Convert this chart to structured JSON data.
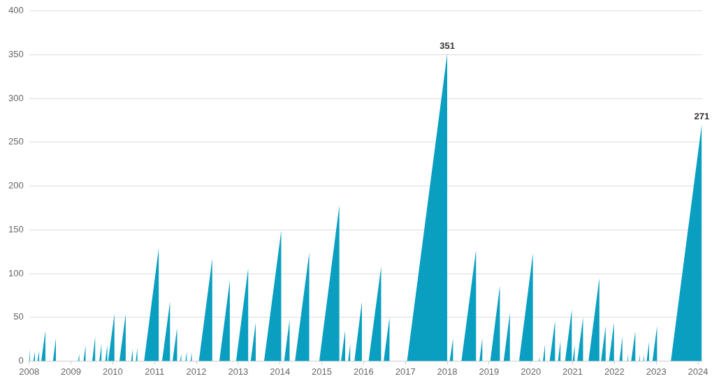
{
  "chart_data": {
    "type": "area",
    "x": [
      2008.0,
      2008.02,
      2008.02,
      2008.1,
      2008.14,
      2008.14,
      2008.2,
      2008.24,
      2008.24,
      2008.29,
      2008.39,
      2008.39,
      2008.57,
      2008.64,
      2008.64,
      2008.98,
      2008.99,
      2008.99,
      2009.17,
      2009.2,
      2009.2,
      2009.3,
      2009.35,
      2009.35,
      2009.51,
      2009.58,
      2009.58,
      2009.68,
      2009.73,
      2009.73,
      2009.82,
      2009.87,
      2009.87,
      2009.89,
      2010.04,
      2010.04,
      2010.16,
      2010.31,
      2010.31,
      2010.44,
      2010.48,
      2010.48,
      2010.55,
      2010.59,
      2010.59,
      2010.75,
      2011.1,
      2011.1,
      2011.18,
      2011.37,
      2011.37,
      2011.43,
      2011.54,
      2011.54,
      2011.61,
      2011.64,
      2011.64,
      2011.74,
      2011.77,
      2011.77,
      2011.86,
      2011.89,
      2011.89,
      2012.06,
      2012.38,
      2012.38,
      2012.55,
      2012.8,
      2012.8,
      2012.95,
      2013.24,
      2013.24,
      2013.3,
      2013.42,
      2013.42,
      2013.62,
      2014.03,
      2014.03,
      2014.1,
      2014.23,
      2014.23,
      2014.36,
      2014.7,
      2014.7,
      2014.94,
      2015.42,
      2015.42,
      2015.46,
      2015.56,
      2015.56,
      2015.63,
      2015.68,
      2015.68,
      2015.78,
      2015.96,
      2015.96,
      2016.12,
      2016.42,
      2016.42,
      2016.48,
      2016.62,
      2016.62,
      2017.04,
      2018.0,
      2018.0,
      2018.06,
      2018.14,
      2018.14,
      2018.34,
      2018.69,
      2018.69,
      2018.77,
      2018.84,
      2018.84,
      2019.03,
      2019.26,
      2019.26,
      2019.35,
      2019.5,
      2019.5,
      2019.72,
      2020.05,
      2020.05,
      2020.19,
      2020.21,
      2020.21,
      2020.29,
      2020.34,
      2020.34,
      2020.45,
      2020.58,
      2020.58,
      2020.65,
      2020.71,
      2020.71,
      2020.82,
      2020.98,
      2020.98,
      2021.0,
      2021.05,
      2021.05,
      2021.11,
      2021.25,
      2021.25,
      2021.38,
      2021.64,
      2021.64,
      2021.68,
      2021.79,
      2021.79,
      2021.87,
      2021.99,
      2021.99,
      2022.12,
      2022.19,
      2022.19,
      2022.31,
      2022.33,
      2022.33,
      2022.4,
      2022.5,
      2022.5,
      2022.59,
      2022.61,
      2022.61,
      2022.69,
      2022.71,
      2022.71,
      2022.77,
      2022.83,
      2022.83,
      2022.91,
      2023.02,
      2023.02,
      2023.35,
      2024.09
    ],
    "values": [
      0,
      14,
      0,
      0,
      11,
      0,
      0,
      12,
      0,
      0,
      35,
      0,
      0,
      26,
      0,
      0,
      5,
      0,
      0,
      8,
      0,
      0,
      18,
      0,
      0,
      28,
      0,
      0,
      20,
      0,
      0,
      18,
      0,
      0,
      54,
      0,
      0,
      54,
      0,
      0,
      14,
      0,
      0,
      15,
      0,
      0,
      129,
      0,
      0,
      68,
      0,
      0,
      38,
      0,
      0,
      8,
      0,
      0,
      11,
      0,
      0,
      10,
      0,
      0,
      117,
      0,
      0,
      92,
      0,
      0,
      106,
      0,
      0,
      44,
      0,
      0,
      149,
      0,
      0,
      47,
      0,
      0,
      124,
      0,
      0,
      178,
      0,
      0,
      35,
      0,
      0,
      19,
      0,
      0,
      68,
      0,
      0,
      108,
      0,
      0,
      50,
      0,
      0,
      351,
      0,
      0,
      26,
      0,
      0,
      127,
      0,
      0,
      26,
      0,
      0,
      86,
      0,
      0,
      55,
      0,
      0,
      123,
      0,
      0,
      5,
      0,
      0,
      19,
      0,
      0,
      46,
      0,
      0,
      23,
      0,
      0,
      59,
      0,
      0,
      18,
      0,
      0,
      50,
      0,
      0,
      95,
      0,
      0,
      40,
      0,
      0,
      44,
      0,
      0,
      28,
      0,
      0,
      8,
      0,
      0,
      34,
      0,
      0,
      8,
      0,
      0,
      8,
      0,
      0,
      22,
      0,
      0,
      40,
      0,
      0,
      271
    ],
    "color": "#0a9fc0",
    "xlim": [
      2008,
      2024.1
    ],
    "xticks": [
      2008,
      2009,
      2010,
      2011,
      2012,
      2013,
      2014,
      2015,
      2016,
      2017,
      2018,
      2019,
      2020,
      2021,
      2022,
      2023,
      2024
    ],
    "ylim": [
      0,
      400
    ],
    "yticks": [
      0,
      50,
      100,
      150,
      200,
      250,
      300,
      350,
      400
    ],
    "grid": "y",
    "annotations": [
      {
        "text": "351",
        "x": 2018.0,
        "y": 351
      },
      {
        "text": "271",
        "x": 2024.09,
        "y": 271
      }
    ]
  }
}
